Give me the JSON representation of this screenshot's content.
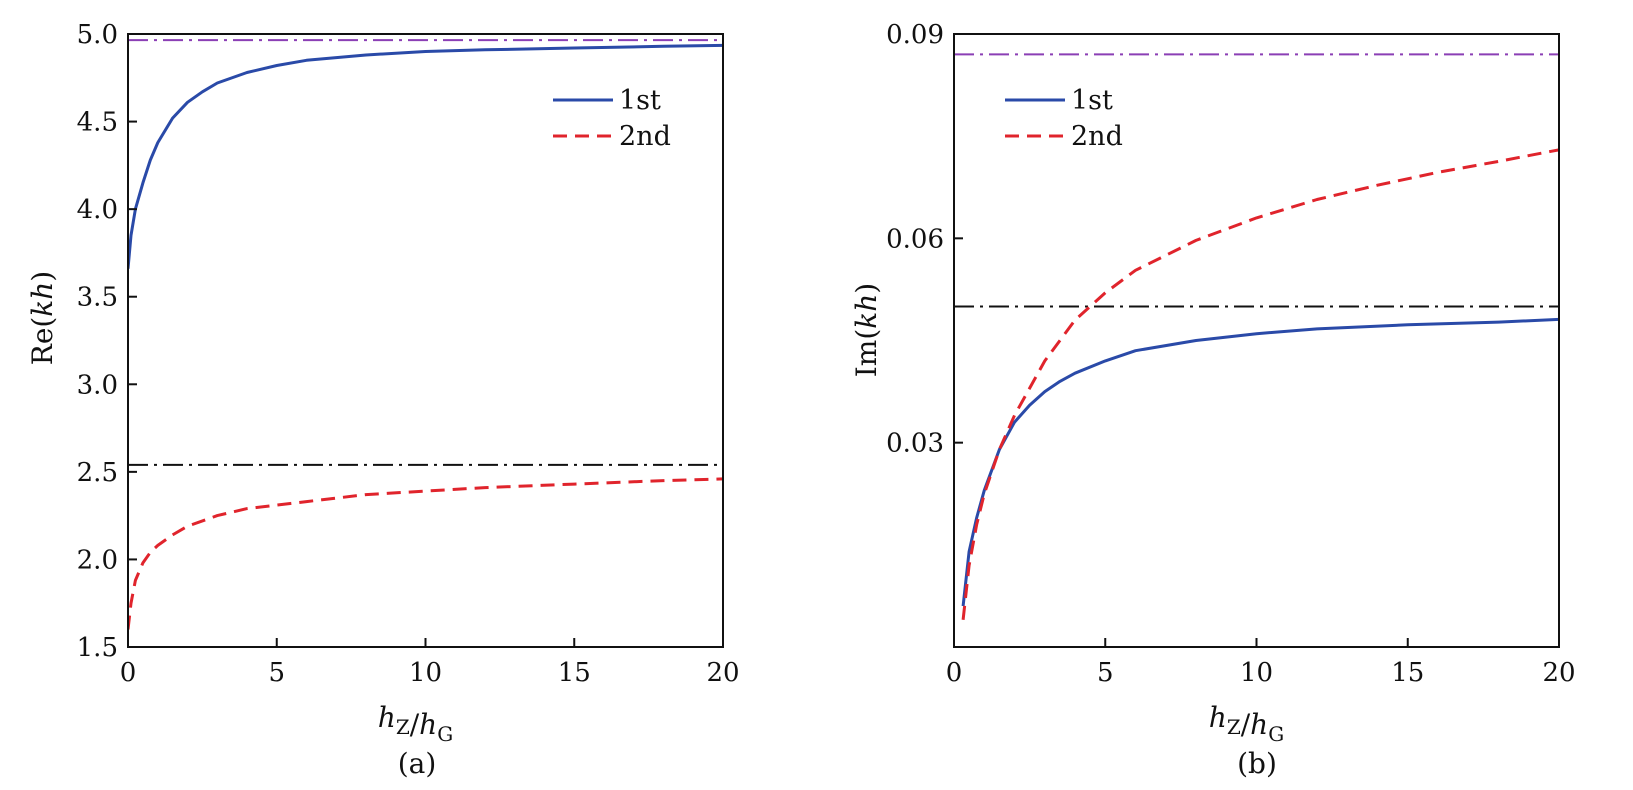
{
  "chart_data": [
    {
      "panel": "(a)",
      "type": "line",
      "xlabel": "h_Z/h_G",
      "ylabel": "Re(kh)",
      "xlim": [
        0,
        20
      ],
      "ylim": [
        1.5,
        5.0
      ],
      "xticks": [
        "0",
        "5",
        "10",
        "15",
        "20"
      ],
      "yticks": [
        "1.5",
        "2.0",
        "2.5",
        "3.0",
        "3.5",
        "4.0",
        "4.5",
        "5.0"
      ],
      "legend_position": "top-right",
      "series": [
        {
          "name": "1st",
          "style": "solid",
          "color": "#2a4aa8",
          "x": [
            0,
            0.1,
            0.25,
            0.5,
            0.75,
            1,
            1.5,
            2,
            2.5,
            3,
            4,
            5,
            6,
            8,
            10,
            12,
            15,
            18,
            20
          ],
          "y": [
            3.66,
            3.85,
            4.0,
            4.15,
            4.28,
            4.38,
            4.52,
            4.61,
            4.67,
            4.72,
            4.78,
            4.82,
            4.85,
            4.88,
            4.9,
            4.91,
            4.92,
            4.93,
            4.935
          ]
        },
        {
          "name": "2nd",
          "style": "dashed",
          "color": "#e0242c",
          "x": [
            0,
            0.1,
            0.25,
            0.5,
            0.75,
            1,
            1.5,
            2,
            3,
            4,
            5,
            6,
            8,
            10,
            12,
            15,
            18,
            20
          ],
          "y": [
            1.6,
            1.75,
            1.88,
            1.98,
            2.04,
            2.08,
            2.14,
            2.19,
            2.25,
            2.29,
            2.31,
            2.33,
            2.37,
            2.39,
            2.41,
            2.43,
            2.45,
            2.46
          ]
        }
      ],
      "reference_lines": [
        {
          "y": 4.965,
          "style": "dashdot",
          "color": "#8b3fb5"
        },
        {
          "y": 2.54,
          "style": "dashdot",
          "color": "#111111"
        }
      ],
      "caption": "(a)"
    },
    {
      "panel": "(b)",
      "type": "line",
      "xlabel": "h_Z/h_G",
      "ylabel": "Im(kh)",
      "xlim": [
        0,
        20
      ],
      "ylim": [
        0,
        0.09
      ],
      "xticks": [
        "0",
        "5",
        "10",
        "15",
        "20"
      ],
      "yticks": [
        "0.03",
        "0.06",
        "0.09"
      ],
      "legend_position": "top-left",
      "series": [
        {
          "name": "1st",
          "style": "solid",
          "color": "#2a4aa8",
          "x": [
            0.3,
            0.5,
            0.75,
            1,
            1.5,
            2,
            2.5,
            3,
            3.5,
            4,
            5,
            6,
            8,
            10,
            12,
            15,
            18,
            20
          ],
          "y": [
            0.006,
            0.014,
            0.019,
            0.023,
            0.029,
            0.033,
            0.0355,
            0.0375,
            0.039,
            0.0402,
            0.042,
            0.0435,
            0.045,
            0.046,
            0.0467,
            0.0473,
            0.0477,
            0.0481
          ]
        },
        {
          "name": "2nd",
          "style": "dashed",
          "color": "#e0242c",
          "x": [
            0.3,
            0.5,
            0.75,
            1,
            1.5,
            2,
            3,
            4,
            5,
            6,
            8,
            10,
            12,
            14,
            16,
            18,
            20
          ],
          "y": [
            0.004,
            0.012,
            0.018,
            0.0225,
            0.029,
            0.034,
            0.042,
            0.048,
            0.052,
            0.0553,
            0.0597,
            0.063,
            0.0657,
            0.0678,
            0.0697,
            0.0713,
            0.073
          ]
        }
      ],
      "reference_lines": [
        {
          "y": 0.087,
          "style": "dashdot",
          "color": "#8b3fb5"
        },
        {
          "y": 0.05,
          "style": "dashdot",
          "color": "#111111"
        }
      ],
      "caption": "(b)"
    }
  ],
  "colors": {
    "series_1st": "#2a4aa8",
    "series_2nd": "#e0242c",
    "ref_upper": "#8b3fb5",
    "ref_lower": "#111111"
  }
}
